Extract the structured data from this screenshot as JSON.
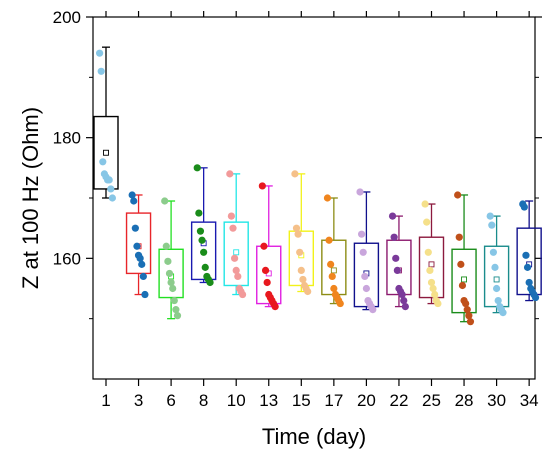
{
  "chart_data": {
    "type": "box",
    "xlabel": "Time (day)",
    "ylabel": "Z at 100 Hz (Ohm)",
    "ylim": [
      140,
      200
    ],
    "yticks_major": [
      160,
      180,
      200
    ],
    "ytick_labels": [
      "160",
      "180",
      "200"
    ],
    "yticks_minor": [
      150,
      170,
      190
    ],
    "categories": [
      "1",
      "3",
      "6",
      "8",
      "10",
      "13",
      "15",
      "17",
      "20",
      "22",
      "25",
      "28",
      "30",
      "34"
    ],
    "grid": false,
    "series": [
      {
        "category": "1",
        "color": "#000000",
        "point_color": "#87c6e6",
        "min": 170,
        "q1": 171.5,
        "median": 172.5,
        "q3": 183.5,
        "max": 195,
        "mean": 177.5,
        "points": [
          194,
          191,
          176,
          174,
          173.5,
          173,
          173,
          171.5,
          170
        ]
      },
      {
        "category": "3",
        "color": "#e8252a",
        "point_color": "#1a6fb5",
        "min": 154,
        "q1": 157.5,
        "median": 159.5,
        "q3": 167.5,
        "max": 170.5,
        "mean": 162,
        "points": [
          170.5,
          169.5,
          165,
          162,
          160.5,
          160,
          159,
          157,
          154
        ]
      },
      {
        "category": "6",
        "color": "#22e022",
        "point_color": "#8ccc8c",
        "min": 150,
        "q1": 153.5,
        "median": 155.5,
        "q3": 161.5,
        "max": 169.5,
        "mean": 157,
        "points": [
          169.5,
          162,
          159.5,
          157.5,
          156,
          155,
          153,
          151.5,
          150.5
        ]
      },
      {
        "category": "8",
        "color": "#1a1ab0",
        "point_color": "#1a8c1a",
        "min": 156,
        "q1": 156.5,
        "median": 160.5,
        "q3": 166,
        "max": 175,
        "mean": 162.5,
        "points": [
          175,
          167.5,
          164.5,
          163,
          161,
          158.5,
          157,
          156.5,
          156
        ]
      },
      {
        "category": "10",
        "color": "#22e6e6",
        "point_color": "#f29a9a",
        "min": 154,
        "q1": 155.5,
        "median": 158.5,
        "q3": 166,
        "max": 174,
        "mean": 161,
        "points": [
          174,
          167,
          165,
          160,
          158,
          157,
          155,
          154.5,
          154
        ]
      },
      {
        "category": "13",
        "color": "#e020e0",
        "point_color": "#e8181e",
        "min": 152,
        "q1": 152.5,
        "median": 154.5,
        "q3": 162,
        "max": 172,
        "mean": 157.5,
        "points": [
          172,
          162,
          158,
          156,
          154,
          153.5,
          153,
          152.5,
          152
        ]
      },
      {
        "category": "15",
        "color": "#f2f21a",
        "point_color": "#f5c08a",
        "min": 154.5,
        "q1": 155.5,
        "median": 157.5,
        "q3": 164.5,
        "max": 174,
        "mean": 160.5,
        "points": [
          174,
          165,
          164,
          161,
          158,
          156.5,
          155.5,
          155,
          154.5
        ]
      },
      {
        "category": "17",
        "color": "#8c8c14",
        "point_color": "#f0851e",
        "min": 152.5,
        "q1": 154,
        "median": 156,
        "q3": 163,
        "max": 170,
        "mean": 158,
        "points": [
          170,
          163,
          159,
          157,
          155,
          154,
          153.5,
          153,
          152.5
        ]
      },
      {
        "category": "20",
        "color": "#10108c",
        "point_color": "#c9a6dc",
        "min": 151.5,
        "q1": 152,
        "median": 155.5,
        "q3": 162.5,
        "max": 171,
        "mean": 157.5,
        "points": [
          171,
          164,
          161,
          157,
          155,
          153,
          152.5,
          152,
          151.5
        ]
      },
      {
        "category": "22",
        "color": "#8c1a6e",
        "point_color": "#7a3a9a",
        "min": 152,
        "q1": 154,
        "median": 156.5,
        "q3": 163,
        "max": 167,
        "mean": 158,
        "points": [
          167,
          163.5,
          160,
          158,
          155,
          154.5,
          154,
          153,
          152
        ]
      },
      {
        "category": "25",
        "color": "#8c1a3e",
        "point_color": "#f5e08a",
        "min": 152.5,
        "q1": 153.5,
        "median": 156,
        "q3": 163.5,
        "max": 169,
        "mean": 159,
        "points": [
          169,
          166,
          161,
          158,
          156,
          155,
          154,
          153,
          152.5
        ]
      },
      {
        "category": "28",
        "color": "#1a8c1a",
        "point_color": "#c0501a",
        "min": 149.5,
        "q1": 151,
        "median": 154,
        "q3": 161.5,
        "max": 170.5,
        "mean": 156.5,
        "points": [
          170.5,
          163.5,
          159,
          155.5,
          153,
          152.5,
          151.5,
          150.5,
          149.5
        ]
      },
      {
        "category": "30",
        "color": "#1a8c8c",
        "point_color": "#87c6e6",
        "min": 151,
        "q1": 152,
        "median": 155,
        "q3": 162,
        "max": 167,
        "mean": 156.5,
        "points": [
          167,
          165.5,
          161,
          158.5,
          155,
          153,
          152,
          151.5,
          151
        ]
      },
      {
        "category": "34",
        "color": "#10108c",
        "point_color": "#1a6fb5",
        "min": 153,
        "q1": 154,
        "median": 156.5,
        "q3": 165,
        "max": 169.5,
        "mean": 159,
        "points": [
          169,
          168.5,
          160.5,
          158.5,
          156,
          155,
          154.5,
          154,
          153.5
        ]
      }
    ]
  }
}
